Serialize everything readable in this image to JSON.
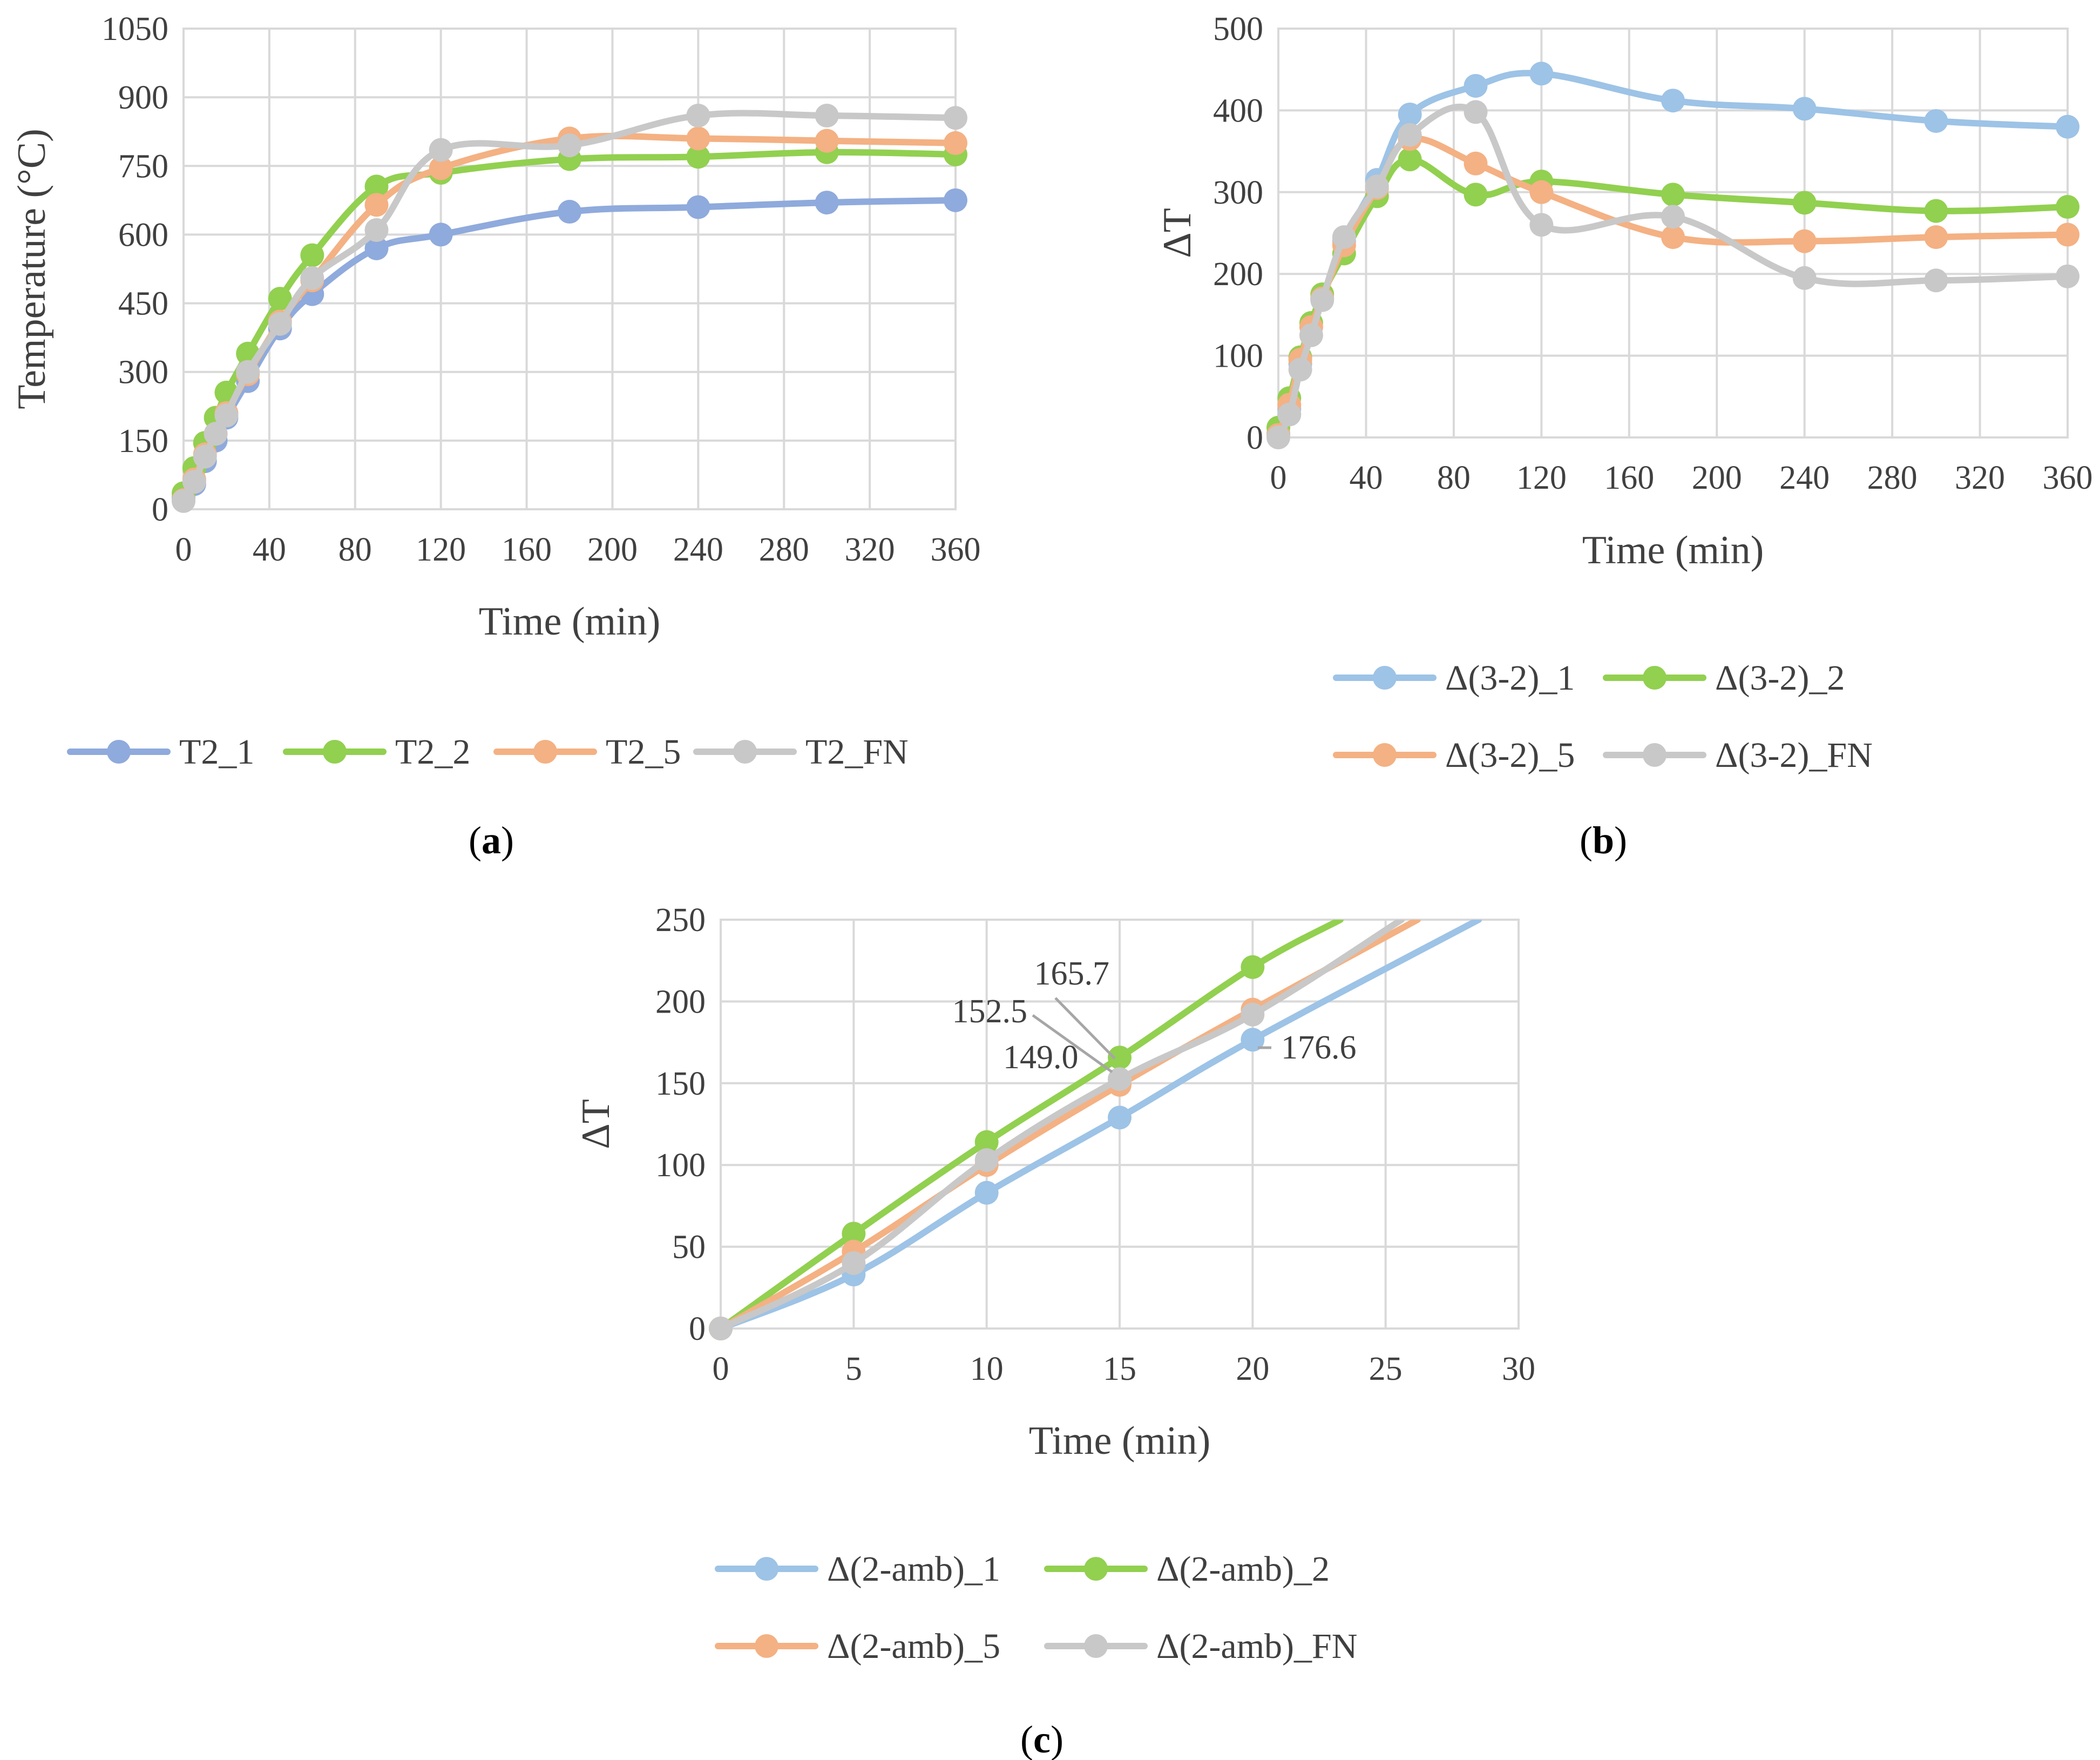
{
  "panels": [
    {
      "id": "a",
      "label": "a",
      "chart_data": {
        "type": "line",
        "title": "",
        "xlabel": "Time (min)",
        "ylabel": "Temperature (°C)",
        "xlim": [
          0,
          360
        ],
        "ylim": [
          0,
          1050
        ],
        "xticks": [
          0,
          40,
          80,
          120,
          160,
          200,
          240,
          280,
          320,
          360
        ],
        "yticks": [
          0,
          150,
          300,
          450,
          600,
          750,
          900,
          1050
        ],
        "grid": true,
        "legend": "bottom",
        "series": [
          {
            "name": "T2_1",
            "color": "#8faadc",
            "x": [
              0,
              5,
              10,
              15,
              20,
              30,
              45,
              60,
              90,
              120,
              180,
              240,
              300,
              360
            ],
            "y": [
              25,
              55,
              105,
              150,
              200,
              280,
              395,
              470,
              570,
              600,
              650,
              660,
              670,
              675
            ]
          },
          {
            "name": "T2_2",
            "color": "#92d050",
            "x": [
              0,
              5,
              10,
              15,
              20,
              30,
              45,
              60,
              90,
              120,
              180,
              240,
              300,
              360
            ],
            "y": [
              35,
              90,
              145,
              200,
              255,
              340,
              460,
              555,
              705,
              735,
              765,
              770,
              780,
              775
            ]
          },
          {
            "name": "T2_5",
            "color": "#f4b183",
            "x": [
              0,
              5,
              10,
              15,
              20,
              30,
              45,
              60,
              90,
              120,
              180,
              240,
              300,
              360
            ],
            "y": [
              20,
              65,
              120,
              165,
              210,
              295,
              410,
              500,
              665,
              745,
              810,
              810,
              805,
              800
            ]
          },
          {
            "name": "T2_FN",
            "color": "#c8c8c8",
            "x": [
              0,
              5,
              10,
              15,
              20,
              30,
              45,
              60,
              90,
              120,
              180,
              240,
              300,
              360
            ],
            "y": [
              18,
              60,
              115,
              165,
              205,
              300,
              405,
              505,
              610,
              785,
              795,
              860,
              860,
              855
            ]
          }
        ]
      }
    },
    {
      "id": "b",
      "label": "b",
      "chart_data": {
        "type": "line",
        "title": "",
        "xlabel": "Time (min)",
        "ylabel": "ΔT",
        "xlim": [
          0,
          360
        ],
        "ylim": [
          0,
          500
        ],
        "xticks": [
          0,
          40,
          80,
          120,
          160,
          200,
          240,
          280,
          320,
          360
        ],
        "yticks": [
          0,
          100,
          200,
          300,
          400,
          500
        ],
        "grid": true,
        "legend": "bottom",
        "series": [
          {
            "name": "Δ(3-2)_1",
            "color": "#9dc3e6",
            "x": [
              0,
              5,
              10,
              20,
              30,
              45,
              60,
              90,
              120,
              180,
              240,
              300,
              360
            ],
            "y": [
              5,
              35,
              90,
              170,
              240,
              315,
              395,
              430,
              445,
              412,
              402,
              387,
              380
            ]
          },
          {
            "name": "Δ(3-2)_2",
            "color": "#92d050",
            "x": [
              0,
              5,
              10,
              15,
              20,
              30,
              45,
              60,
              90,
              120,
              180,
              240,
              300,
              360
            ],
            "y": [
              12,
              48,
              98,
              140,
              175,
              225,
              295,
              340,
              297,
              313,
              297,
              287,
              277,
              282
            ]
          },
          {
            "name": "Δ(3-2)_5",
            "color": "#f4b183",
            "x": [
              0,
              5,
              10,
              15,
              20,
              30,
              45,
              60,
              90,
              120,
              180,
              240,
              300,
              360
            ],
            "y": [
              3,
              40,
              95,
              135,
              170,
              235,
              305,
              365,
              335,
              300,
              245,
              240,
              245,
              248
            ]
          },
          {
            "name": "Δ(3-2)_FN",
            "color": "#c8c8c8",
            "x": [
              0,
              5,
              10,
              15,
              20,
              30,
              45,
              60,
              90,
              120,
              180,
              240,
              300,
              360
            ],
            "y": [
              0,
              28,
              83,
              125,
              168,
              245,
              307,
              370,
              398,
              260,
              270,
              195,
              192,
              197
            ]
          }
        ]
      }
    },
    {
      "id": "c",
      "label": "c",
      "chart_data": {
        "type": "line",
        "title": "",
        "xlabel": "Time (min)",
        "ylabel": "ΔT",
        "xlim": [
          0,
          30
        ],
        "ylim": [
          0,
          250
        ],
        "xticks": [
          0,
          5,
          10,
          15,
          20,
          25,
          30
        ],
        "yticks": [
          0,
          50,
          100,
          150,
          200,
          250
        ],
        "grid": true,
        "legend": "bottom",
        "series": [
          {
            "name": "Δ(2-amb)_1",
            "color": "#9dc3e6",
            "x": [
              0,
              5,
              10,
              15,
              20,
              28.5
            ],
            "y": [
              0,
              33,
              83,
              129,
              176.6,
              250
            ]
          },
          {
            "name": "Δ(2-amb)_2",
            "color": "#92d050",
            "x": [
              0,
              5,
              10,
              15,
              20,
              23.3
            ],
            "y": [
              0,
              58,
              114,
              165.7,
              221,
              250
            ]
          },
          {
            "name": "Δ(2-amb)_5",
            "color": "#f4b183",
            "x": [
              0,
              5,
              10,
              15,
              20,
              26.2
            ],
            "y": [
              0,
              47,
              100,
              149.0,
              195,
              250
            ]
          },
          {
            "name": "Δ(2-amb)_FN",
            "color": "#c8c8c8",
            "x": [
              0,
              5,
              10,
              15,
              20,
              25.6
            ],
            "y": [
              0,
              40,
              103,
              152.5,
              192,
              250
            ]
          }
        ],
        "annotations": [
          {
            "text": "165.7",
            "series": 1,
            "x": 15,
            "y": 165.7
          },
          {
            "text": "152.5",
            "series": 3,
            "x": 15,
            "y": 152.5
          },
          {
            "text": "149.0",
            "series": 2,
            "x": 15,
            "y": 149.0
          },
          {
            "text": "176.6",
            "series": 0,
            "x": 20,
            "y": 176.6
          }
        ]
      }
    }
  ]
}
